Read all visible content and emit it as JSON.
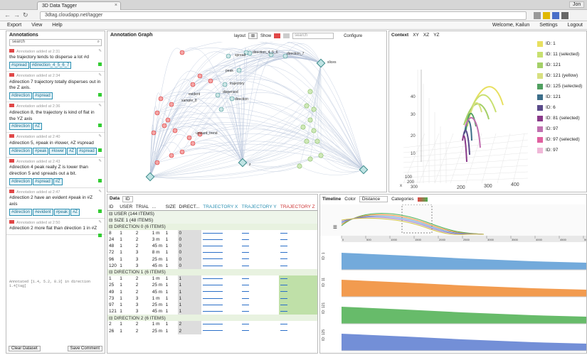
{
  "browser": {
    "tab_title": "3D Data Tagger",
    "url": "3dtag.cloudapp.net/tagger",
    "user": "Jon"
  },
  "appbar": {
    "menu": [
      "Export",
      "View",
      "Help"
    ],
    "right": [
      "Welcome, Kailun",
      "Settings",
      "Logout"
    ]
  },
  "annotations": {
    "title": "Annotations",
    "search": "search",
    "items": [
      {
        "meta": "Annotation added at 2:31",
        "text": "the trajectory tends to disperse a lot #d",
        "tags": [
          "#spread",
          "#direction_4_5_6_7"
        ]
      },
      {
        "meta": "Annotation added at 2:34",
        "text": "#direction 7 trajectory totally disperses out in the Z axis.",
        "tags": [
          "#direction",
          "#spread"
        ]
      },
      {
        "meta": "Annotation added at 2:36",
        "text": "#direction 8, the trajectory is kind of flat in the YZ axis",
        "tags": [
          "#direction",
          "#Z"
        ]
      },
      {
        "meta": "Annotation added at 2:40",
        "text": "#direction 5, #peak in #lower, #Z #spread",
        "tags": [
          "#direction",
          "#peak",
          "#lower",
          "#Z",
          "#spread"
        ]
      },
      {
        "meta": "Annotation added at 2:43",
        "text": "#direction 4 peak really Z is lower than direction 5 and spreads out a bit.",
        "tags": [
          "#direction",
          "#spread",
          "#Z"
        ]
      },
      {
        "meta": "Annotation added at 2:47",
        "text": "#direction 2 have an evident #peak in #Z axis",
        "tags": [
          "#direction",
          "#evident",
          "#peak",
          "#Z"
        ]
      },
      {
        "meta": "Annotation added at 2:50",
        "text": "#direction 2 more flat than direction 1 in #Z",
        "tags": []
      }
    ],
    "editor_text": "Annotated [1.4, 5.2, 8.3] in direction 1.4[tag]",
    "clear": "Clear Dataset",
    "save": "Save Comment"
  },
  "graph": {
    "title": "Annotation Graph",
    "layout": "layout",
    "show": "Show",
    "search": "search",
    "configure": "Configure",
    "labels": [
      "spread",
      "direction_4_5_6",
      "direction_7",
      "slices",
      "peak",
      "trajectory",
      "dispersed",
      "evident",
      "sample_8",
      "direction",
      "upward_trend",
      "z"
    ]
  },
  "context": {
    "title": "Context",
    "tabs": [
      "XY",
      "XZ",
      "YZ"
    ],
    "legend": [
      {
        "label": "ID: 1",
        "color": "#e8e060"
      },
      {
        "label": "ID: 11 (selected)",
        "color": "#c8e070"
      },
      {
        "label": "ID: 121",
        "color": "#a4d068"
      },
      {
        "label": "ID: 121 (yellow)",
        "color": "#d8e080"
      },
      {
        "label": "ID: 125 (selected)",
        "color": "#50a060"
      },
      {
        "label": "ID: 121",
        "color": "#3c6e8a"
      },
      {
        "label": "ID: 6",
        "color": "#5a4a8a"
      },
      {
        "label": "ID: 81 (selected)",
        "color": "#8a3a8a"
      },
      {
        "label": "ID: 97",
        "color": "#c070b0"
      },
      {
        "label": "ID: 97 (selected)",
        "color": "#e060a0"
      },
      {
        "label": "ID: 97",
        "color": "#f0b8d8"
      }
    ],
    "axis_y": [
      "400",
      "300",
      "200"
    ],
    "axis_x": [
      "x",
      "100",
      "200",
      "300"
    ],
    "axis_z": [
      "40",
      "30",
      "20",
      "10"
    ]
  },
  "datatable": {
    "title": "Data",
    "filter": "ID",
    "columns": [
      "ID",
      "USER",
      "TRIAL",
      "...",
      "SIZE",
      "DIRECT...",
      "TRAJECTORY X",
      "TRAJECTORY Y",
      "TRAJECTORY Z"
    ],
    "user_group": "USER (144 ITEMS)",
    "size_group": "SIZE 1 (48 ITEMS)",
    "groups": [
      {
        "label": "DIRECTION 0 (6 ITEMS)",
        "rows": [
          [
            "8",
            "1",
            "2",
            "1 m",
            "1",
            "0"
          ],
          [
            "24",
            "1",
            "2",
            "3 m",
            "1",
            "0"
          ],
          [
            "48",
            "1",
            "2",
            "45 m",
            "1",
            "0"
          ],
          [
            "72",
            "1",
            "3",
            "8 m",
            "1",
            "0"
          ],
          [
            "96",
            "1",
            "3",
            "25 m",
            "1",
            "0"
          ],
          [
            "120",
            "1",
            "3",
            "45 m",
            "1",
            "0"
          ]
        ]
      },
      {
        "label": "DIRECTION 1 (6 ITEMS)",
        "rows": [
          [
            "1",
            "1",
            "2",
            "1 m",
            "1",
            "1"
          ],
          [
            "25",
            "1",
            "2",
            "25 m",
            "1",
            "1"
          ],
          [
            "49",
            "1",
            "2",
            "45 m",
            "1",
            "1"
          ],
          [
            "73",
            "1",
            "3",
            "1 m",
            "1",
            "1"
          ],
          [
            "97",
            "1",
            "3",
            "25 m",
            "1",
            "1"
          ],
          [
            "121",
            "1",
            "3",
            "45 m",
            "1",
            "1"
          ]
        ]
      },
      {
        "label": "DIRECTION 2 (6 ITEMS)",
        "rows": [
          [
            "2",
            "1",
            "2",
            "1 m",
            "1",
            "2"
          ],
          [
            "26",
            "1",
            "2",
            "25 m",
            "1",
            "2"
          ]
        ]
      }
    ]
  },
  "timeline": {
    "title": "Timeline",
    "color_label": "Color",
    "color_value": "Distance",
    "categories": "Categories",
    "ticks": [
      "0",
      "500",
      "1000",
      "1500",
      "2000",
      "2500",
      "3000",
      "3500",
      "4000",
      "4500",
      "5000"
    ],
    "rows": [
      {
        "label": "ID: 1",
        "color": "#5b9bd5"
      },
      {
        "label": "ID: 11",
        "color": "#f08a30"
      },
      {
        "label": "ID: 121",
        "color": "#4caf50"
      },
      {
        "label": "ID: 125",
        "color": "#5b7bd0"
      }
    ]
  }
}
